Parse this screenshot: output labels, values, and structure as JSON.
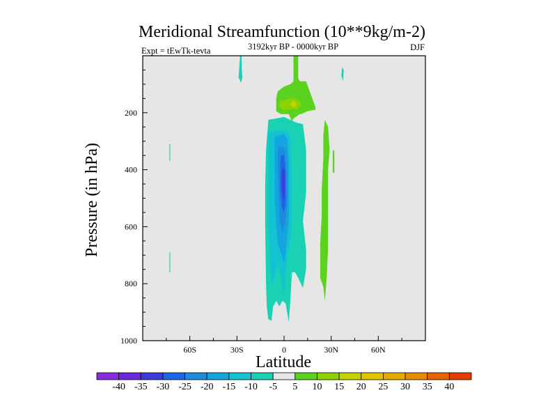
{
  "chart_data": {
    "type": "heatmap",
    "title": "Meridional Streamfunction (10**9kg/m-2)",
    "subtitle_left": "Expt = tEwTk-tevta",
    "subtitle_center": "3192kyr BP - 0000kyr BP",
    "subtitle_right": "DJF",
    "xlabel": "Latitude",
    "ylabel": "Pressure (in hPa)",
    "xlim": [
      -90,
      90
    ],
    "ylim": [
      1000,
      0
    ],
    "x_ticks": [
      {
        "value": -60,
        "label": "60S"
      },
      {
        "value": -30,
        "label": "30S"
      },
      {
        "value": 0,
        "label": "0"
      },
      {
        "value": 30,
        "label": "30N"
      },
      {
        "value": 60,
        "label": "60N"
      }
    ],
    "y_ticks": [
      {
        "value": 200,
        "label": "200"
      },
      {
        "value": 400,
        "label": "400"
      },
      {
        "value": 600,
        "label": "600"
      },
      {
        "value": 800,
        "label": "800"
      },
      {
        "value": 1000,
        "label": "1000"
      }
    ],
    "background_color": "#e6e6e6",
    "colorbar": {
      "levels": [
        "-40",
        "-35",
        "-30",
        "-25",
        "-20",
        "-15",
        "-10",
        "-5",
        "5",
        "10",
        "15",
        "20",
        "25",
        "30",
        "35",
        "40"
      ],
      "colors": [
        "#8a2be2",
        "#6a28d8",
        "#3c3cdc",
        "#1e64e6",
        "#1e8cdc",
        "#14a5e1",
        "#14c3d2",
        "#19d2b4",
        "#e6e6e6",
        "#5ad21e",
        "#8cd200",
        "#c3d200",
        "#e1c300",
        "#e6aa00",
        "#e68c00",
        "#e66400",
        "#e63c00"
      ]
    },
    "regions": [
      {
        "fill": "#19d2b4",
        "label": "-5",
        "points": [
          [
            -28,
            0
          ],
          [
            -27,
            0
          ],
          [
            -27,
            40
          ],
          [
            -26.5,
            75
          ],
          [
            -27.5,
            95
          ],
          [
            -29,
            75
          ],
          [
            -28.5,
            40
          ]
        ]
      },
      {
        "fill": "#19d2b4",
        "label": "-5",
        "points": [
          [
            -73,
            310
          ],
          [
            -72.5,
            310
          ],
          [
            -72.5,
            370
          ],
          [
            -73,
            370
          ]
        ]
      },
      {
        "fill": "#19d2b4",
        "label": "-5",
        "points": [
          [
            -73,
            690
          ],
          [
            -72.5,
            690
          ],
          [
            -72.5,
            760
          ],
          [
            -73,
            760
          ]
        ]
      },
      {
        "fill": "#19d2b4",
        "label": "-5",
        "points": [
          [
            37,
            40
          ],
          [
            38,
            50
          ],
          [
            37.5,
            90
          ],
          [
            36.5,
            70
          ]
        ]
      },
      {
        "fill": "#19d2b4",
        "label": "-5",
        "points": [
          [
            -10,
            225
          ],
          [
            -5,
            220
          ],
          [
            0,
            215
          ],
          [
            4,
            225
          ],
          [
            8,
            235
          ],
          [
            12,
            240
          ],
          [
            14,
            330
          ],
          [
            14,
            480
          ],
          [
            12,
            580
          ],
          [
            14,
            680
          ],
          [
            14,
            750
          ],
          [
            12,
            815
          ],
          [
            9,
            780
          ],
          [
            7,
            760
          ],
          [
            5,
            760
          ],
          [
            4,
            860
          ],
          [
            3,
            935
          ],
          [
            1,
            870
          ],
          [
            -1,
            860
          ],
          [
            -3,
            880
          ],
          [
            -5,
            860
          ],
          [
            -7,
            880
          ],
          [
            -8,
            930
          ],
          [
            -10,
            925
          ],
          [
            -11,
            880
          ],
          [
            -11.5,
            800
          ],
          [
            -12,
            600
          ],
          [
            -12,
            450
          ],
          [
            -11.5,
            330
          ]
        ]
      },
      {
        "fill": "#14c3d2",
        "label": "-10",
        "points": [
          [
            -10,
            270
          ],
          [
            -5,
            262
          ],
          [
            0,
            262
          ],
          [
            3,
            270
          ],
          [
            4,
            300
          ],
          [
            5,
            420
          ],
          [
            5,
            560
          ],
          [
            4,
            650
          ],
          [
            2,
            700
          ],
          [
            1,
            760
          ],
          [
            0,
            850
          ],
          [
            -2,
            780
          ],
          [
            -4,
            730
          ],
          [
            -6,
            775
          ],
          [
            -8,
            800
          ],
          [
            -9,
            730
          ],
          [
            -10,
            600
          ],
          [
            -10,
            450
          ]
        ]
      },
      {
        "fill": "#14a5e1",
        "label": "-15",
        "points": [
          [
            -6,
            285
          ],
          [
            -3,
            278
          ],
          [
            0,
            275
          ],
          [
            2,
            290
          ],
          [
            3,
            360
          ],
          [
            3,
            480
          ],
          [
            3,
            570
          ],
          [
            2,
            640
          ],
          [
            1,
            690
          ],
          [
            0,
            730
          ],
          [
            -2,
            690
          ],
          [
            -4,
            660
          ],
          [
            -5,
            600
          ],
          [
            -6,
            500
          ],
          [
            -6,
            380
          ]
        ]
      },
      {
        "fill": "#1e8cdc",
        "label": "-20",
        "points": [
          [
            -4,
            320
          ],
          [
            -1,
            318
          ],
          [
            1,
            330
          ],
          [
            2,
            420
          ],
          [
            2,
            520
          ],
          [
            1,
            580
          ],
          [
            -1,
            620
          ],
          [
            -3,
            570
          ],
          [
            -3.5,
            480
          ],
          [
            -4,
            400
          ]
        ]
      },
      {
        "fill": "#1e64e6",
        "label": "-25",
        "points": [
          [
            -2,
            350
          ],
          [
            0,
            348
          ],
          [
            1,
            410
          ],
          [
            1,
            510
          ],
          [
            0,
            555
          ],
          [
            -1.5,
            530
          ],
          [
            -2.5,
            460
          ],
          [
            -2.5,
            390
          ]
        ]
      },
      {
        "fill": "#3c3cdc",
        "label": "-30",
        "points": [
          [
            -1,
            395
          ],
          [
            0.3,
            398
          ],
          [
            0.5,
            460
          ],
          [
            0.2,
            500
          ],
          [
            -0.8,
            495
          ],
          [
            -1.5,
            450
          ]
        ]
      },
      {
        "fill": "#5ad21e",
        "label": "5",
        "points": [
          [
            6,
            0
          ],
          [
            9,
            0
          ],
          [
            9,
            80
          ],
          [
            10,
            90
          ],
          [
            14,
            90
          ],
          [
            16,
            120
          ],
          [
            20,
            180
          ],
          [
            20,
            190
          ],
          [
            17,
            192
          ],
          [
            15,
            195
          ],
          [
            11,
            205
          ],
          [
            10,
            205
          ],
          [
            6,
            220
          ],
          [
            5,
            230
          ],
          [
            3,
            205
          ],
          [
            -2,
            205
          ],
          [
            -5,
            195
          ],
          [
            -5,
            150
          ],
          [
            -4,
            125
          ],
          [
            0,
            108
          ],
          [
            4,
            100
          ],
          [
            6,
            90
          ]
        ]
      },
      {
        "fill": "#8cd200",
        "label": "10",
        "points": [
          [
            -3,
            160
          ],
          [
            1,
            155
          ],
          [
            5,
            148
          ],
          [
            9,
            155
          ],
          [
            11,
            168
          ],
          [
            10,
            180
          ],
          [
            8,
            190
          ],
          [
            6,
            185
          ],
          [
            3,
            190
          ],
          [
            -1,
            192
          ],
          [
            -3,
            180
          ]
        ]
      },
      {
        "fill": "#c3d200",
        "label": "15",
        "points": [
          [
            5,
            160
          ],
          [
            7,
            160
          ],
          [
            8,
            170
          ],
          [
            7,
            180
          ],
          [
            5,
            178
          ],
          [
            4,
            170
          ]
        ]
      },
      {
        "fill": "#5ad21e",
        "label": "5",
        "points": [
          [
            26,
            225
          ],
          [
            28,
            250
          ],
          [
            29,
            330
          ],
          [
            28,
            400
          ],
          [
            28,
            560
          ],
          [
            28,
            680
          ],
          [
            27,
            790
          ],
          [
            26,
            860
          ],
          [
            25,
            810
          ],
          [
            23,
            780
          ],
          [
            23,
            660
          ],
          [
            24,
            560
          ],
          [
            24,
            470
          ],
          [
            25,
            360
          ],
          [
            25,
            280
          ]
        ]
      },
      {
        "fill": "#5ad21e",
        "label": "5",
        "points": [
          [
            31,
            330
          ],
          [
            32,
            335
          ],
          [
            32,
            410
          ],
          [
            31,
            410
          ]
        ]
      }
    ]
  }
}
